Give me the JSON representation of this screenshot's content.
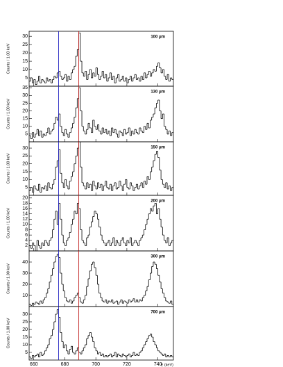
{
  "chart_data": [
    {
      "type": "histogram",
      "label": "100 μm",
      "ylabel": "Counts / 1.00 keV",
      "color": "#000000",
      "bins": [
        657,
        658,
        659,
        660,
        661,
        662,
        663,
        664,
        665,
        666,
        667,
        668,
        669,
        670,
        671,
        672,
        673,
        674,
        675,
        676,
        677,
        678,
        679,
        680,
        681,
        682,
        683,
        684,
        685,
        686,
        687,
        688,
        689,
        690,
        691,
        692,
        693,
        694,
        695,
        696,
        697,
        698,
        699,
        700,
        701,
        702,
        703,
        704,
        705,
        706,
        707,
        708,
        709,
        710,
        711,
        712,
        713,
        714,
        715,
        716,
        717,
        718,
        719,
        720,
        721,
        722,
        723,
        724,
        725,
        726,
        727,
        728,
        729,
        730,
        731,
        732,
        733,
        734,
        735,
        736,
        737,
        738,
        739,
        740,
        741,
        742,
        743,
        744,
        745,
        746,
        747,
        748,
        749,
        750
      ],
      "values": [
        3,
        5,
        2,
        4,
        1,
        3,
        6,
        2,
        4,
        3,
        2,
        5,
        3,
        4,
        2,
        4,
        6,
        5,
        8,
        9,
        6,
        4,
        5,
        7,
        3,
        6,
        4,
        8,
        10,
        12,
        18,
        22,
        32,
        15,
        8,
        6,
        9,
        4,
        7,
        10,
        5,
        8,
        6,
        11,
        7,
        4,
        6,
        9,
        5,
        7,
        3,
        5,
        8,
        4,
        6,
        2,
        5,
        7,
        3,
        4,
        6,
        3,
        5,
        2,
        4,
        6,
        3,
        5,
        7,
        4,
        5,
        3,
        6,
        4,
        8,
        5,
        7,
        9,
        6,
        8,
        10,
        9,
        12,
        14,
        11,
        8,
        10,
        6,
        4,
        7,
        3,
        5,
        4
      ],
      "xlim": [
        657,
        750
      ],
      "xticks": [
        660,
        680,
        700,
        720,
        740
      ],
      "ylim": [
        0,
        33
      ],
      "yticks": [
        5,
        10,
        15,
        20,
        25,
        30
      ],
      "vlines": [
        {
          "x": 676,
          "color": "#2020c0"
        },
        {
          "x": 689,
          "color": "#c02020"
        }
      ]
    },
    {
      "type": "histogram",
      "label": "130 μm",
      "ylabel": "Counts / 1.00 keV",
      "color": "#000000",
      "bins": [
        657,
        658,
        659,
        660,
        661,
        662,
        663,
        664,
        665,
        666,
        667,
        668,
        669,
        670,
        671,
        672,
        673,
        674,
        675,
        676,
        677,
        678,
        679,
        680,
        681,
        682,
        683,
        684,
        685,
        686,
        687,
        688,
        689,
        690,
        691,
        692,
        693,
        694,
        695,
        696,
        697,
        698,
        699,
        700,
        701,
        702,
        703,
        704,
        705,
        706,
        707,
        708,
        709,
        710,
        711,
        712,
        713,
        714,
        715,
        716,
        717,
        718,
        719,
        720,
        721,
        722,
        723,
        724,
        725,
        726,
        727,
        728,
        729,
        730,
        731,
        732,
        733,
        734,
        735,
        736,
        737,
        738,
        739,
        740,
        741,
        742,
        743,
        744,
        745,
        746,
        747,
        748,
        749,
        750
      ],
      "values": [
        4,
        2,
        6,
        3,
        5,
        8,
        4,
        7,
        3,
        5,
        4,
        6,
        9,
        5,
        7,
        8,
        12,
        16,
        14,
        18,
        10,
        6,
        4,
        8,
        5,
        3,
        6,
        9,
        12,
        16,
        22,
        28,
        35,
        20,
        10,
        7,
        5,
        8,
        12,
        9,
        6,
        14,
        10,
        8,
        11,
        7,
        5,
        9,
        6,
        8,
        5,
        7,
        4,
        9,
        6,
        8,
        5,
        3,
        7,
        6,
        4,
        8,
        5,
        6,
        9,
        4,
        7,
        5,
        8,
        6,
        5,
        9,
        7,
        6,
        10,
        8,
        12,
        9,
        14,
        16,
        18,
        22,
        25,
        27,
        20,
        15,
        18,
        10,
        8,
        5,
        7,
        4,
        6
      ],
      "xlim": [
        657,
        750
      ],
      "xticks": [
        660,
        680,
        700,
        720,
        740
      ],
      "ylim": [
        0,
        36
      ],
      "yticks": [
        5,
        10,
        15,
        20,
        25,
        30,
        35
      ],
      "vlines": [
        {
          "x": 676,
          "color": "#2020c0"
        },
        {
          "x": 689,
          "color": "#c02020"
        }
      ]
    },
    {
      "type": "histogram",
      "label": "150 μm",
      "ylabel": "Counts / 1.00 keV",
      "color": "#000000",
      "bins": [
        657,
        658,
        659,
        660,
        661,
        662,
        663,
        664,
        665,
        666,
        667,
        668,
        669,
        670,
        671,
        672,
        673,
        674,
        675,
        676,
        677,
        678,
        679,
        680,
        681,
        682,
        683,
        684,
        685,
        686,
        687,
        688,
        689,
        690,
        691,
        692,
        693,
        694,
        695,
        696,
        697,
        698,
        699,
        700,
        701,
        702,
        703,
        704,
        705,
        706,
        707,
        708,
        709,
        710,
        711,
        712,
        713,
        714,
        715,
        716,
        717,
        718,
        719,
        720,
        721,
        722,
        723,
        724,
        725,
        726,
        727,
        728,
        729,
        730,
        731,
        732,
        733,
        734,
        735,
        736,
        737,
        738,
        739,
        740,
        741,
        742,
        743,
        744,
        745,
        746,
        747,
        748,
        749,
        750
      ],
      "values": [
        3,
        5,
        2,
        6,
        4,
        3,
        7,
        2,
        5,
        4,
        6,
        3,
        8,
        5,
        4,
        7,
        10,
        18,
        22,
        29,
        14,
        8,
        5,
        10,
        6,
        4,
        9,
        12,
        15,
        20,
        25,
        30,
        34,
        18,
        8,
        6,
        4,
        8,
        5,
        7,
        3,
        9,
        6,
        4,
        8,
        5,
        7,
        3,
        6,
        9,
        5,
        4,
        7,
        3,
        6,
        8,
        4,
        5,
        9,
        6,
        3,
        7,
        10,
        5,
        4,
        8,
        6,
        3,
        5,
        7,
        4,
        6,
        8,
        5,
        9,
        7,
        12,
        10,
        15,
        18,
        22,
        26,
        28,
        24,
        16,
        10,
        7,
        5,
        8,
        4,
        6,
        3,
        5
      ],
      "xlim": [
        657,
        750
      ],
      "xticks": [
        660,
        680,
        700,
        720,
        740
      ],
      "ylim": [
        0,
        34
      ],
      "yticks": [
        5,
        10,
        15,
        20,
        25,
        30
      ],
      "vlines": [
        {
          "x": 676,
          "color": "#2020c0"
        },
        {
          "x": 689,
          "color": "#c02020"
        }
      ]
    },
    {
      "type": "histogram",
      "label": "200 μm",
      "ylabel": "Counts / 1.00 keV",
      "color": "#000000",
      "bins": [
        657,
        658,
        659,
        660,
        661,
        662,
        663,
        664,
        665,
        666,
        667,
        668,
        669,
        670,
        671,
        672,
        673,
        674,
        675,
        676,
        677,
        678,
        679,
        680,
        681,
        682,
        683,
        684,
        685,
        686,
        687,
        688,
        689,
        690,
        691,
        692,
        693,
        694,
        695,
        696,
        697,
        698,
        699,
        700,
        701,
        702,
        703,
        704,
        705,
        706,
        707,
        708,
        709,
        710,
        711,
        712,
        713,
        714,
        715,
        716,
        717,
        718,
        719,
        720,
        721,
        722,
        723,
        724,
        725,
        726,
        727,
        728,
        729,
        730,
        731,
        732,
        733,
        734,
        735,
        736,
        737,
        738,
        739,
        740,
        741,
        742,
        743,
        744,
        745,
        746,
        747,
        748,
        749,
        750
      ],
      "values": [
        2,
        1,
        3,
        2,
        0,
        4,
        2,
        1,
        3,
        2,
        4,
        3,
        2,
        4,
        5,
        8,
        12,
        15,
        10,
        18,
        12,
        6,
        3,
        2,
        4,
        5,
        7,
        10,
        12,
        15,
        14,
        18,
        16,
        8,
        4,
        3,
        2,
        5,
        6,
        9,
        11,
        13,
        15,
        14,
        12,
        9,
        6,
        4,
        3,
        2,
        3,
        4,
        2,
        3,
        5,
        2,
        4,
        3,
        2,
        4,
        5,
        3,
        2,
        4,
        3,
        5,
        2,
        3,
        4,
        3,
        2,
        4,
        5,
        6,
        8,
        10,
        12,
        14,
        16,
        15,
        17,
        18,
        14,
        16,
        12,
        9,
        6,
        4,
        3,
        5,
        2,
        3,
        4
      ],
      "xlim": [
        657,
        750
      ],
      "xticks": [
        660,
        680,
        700,
        720,
        740
      ],
      "ylim": [
        0,
        21
      ],
      "yticks": [
        2,
        4,
        6,
        8,
        10,
        12,
        14,
        16,
        18,
        20
      ],
      "vlines": [
        {
          "x": 676,
          "color": "#2020c0"
        },
        {
          "x": 689,
          "color": "#c02020"
        }
      ]
    },
    {
      "type": "histogram",
      "label": "300 μm",
      "ylabel": "Counts / 1.00 keV",
      "color": "#000000",
      "bins": [
        657,
        658,
        659,
        660,
        661,
        662,
        663,
        664,
        665,
        666,
        667,
        668,
        669,
        670,
        671,
        672,
        673,
        674,
        675,
        676,
        677,
        678,
        679,
        680,
        681,
        682,
        683,
        684,
        685,
        686,
        687,
        688,
        689,
        690,
        691,
        692,
        693,
        694,
        695,
        696,
        697,
        698,
        699,
        700,
        701,
        702,
        703,
        704,
        705,
        706,
        707,
        708,
        709,
        710,
        711,
        712,
        713,
        714,
        715,
        716,
        717,
        718,
        719,
        720,
        721,
        722,
        723,
        724,
        725,
        726,
        727,
        728,
        729,
        730,
        731,
        732,
        733,
        734,
        735,
        736,
        737,
        738,
        739,
        740,
        741,
        742,
        743,
        744,
        745,
        746,
        747,
        748,
        749,
        750
      ],
      "values": [
        2,
        1,
        3,
        2,
        4,
        3,
        2,
        5,
        3,
        6,
        8,
        12,
        16,
        22,
        28,
        34,
        40,
        45,
        47,
        44,
        30,
        20,
        14,
        8,
        5,
        4,
        6,
        3,
        5,
        8,
        10,
        12,
        8,
        4,
        3,
        6,
        10,
        18,
        25,
        32,
        38,
        40,
        35,
        28,
        20,
        12,
        8,
        5,
        4,
        6,
        3,
        5,
        4,
        6,
        3,
        4,
        5,
        2,
        4,
        6,
        3,
        5,
        4,
        3,
        6,
        4,
        5,
        7,
        4,
        6,
        4,
        6,
        5,
        8,
        10,
        14,
        18,
        24,
        30,
        36,
        40,
        38,
        34,
        28,
        22,
        16,
        12,
        8,
        5,
        4,
        3,
        5,
        2
      ],
      "xlim": [
        657,
        750
      ],
      "xticks": [
        660,
        680,
        700,
        720,
        740
      ],
      "ylim": [
        0,
        50
      ],
      "yticks": [
        10,
        20,
        30,
        40
      ],
      "vlines": [
        {
          "x": 676,
          "color": "#2020c0"
        },
        {
          "x": 689,
          "color": "#c02020"
        }
      ]
    },
    {
      "type": "histogram",
      "label": "700 μm",
      "ylabel": "Counts / 1.00 keV",
      "xlabel": "E (keV)",
      "color": "#000000",
      "bins": [
        657,
        658,
        659,
        660,
        661,
        662,
        663,
        664,
        665,
        666,
        667,
        668,
        669,
        670,
        671,
        672,
        673,
        674,
        675,
        676,
        677,
        678,
        679,
        680,
        681,
        682,
        683,
        684,
        685,
        686,
        687,
        688,
        689,
        690,
        691,
        692,
        693,
        694,
        695,
        696,
        697,
        698,
        699,
        700,
        701,
        702,
        703,
        704,
        705,
        706,
        707,
        708,
        709,
        710,
        711,
        712,
        713,
        714,
        715,
        716,
        717,
        718,
        719,
        720,
        721,
        722,
        723,
        724,
        725,
        726,
        727,
        728,
        729,
        730,
        731,
        732,
        733,
        734,
        735,
        736,
        737,
        738,
        739,
        740,
        741,
        742,
        743,
        744,
        745,
        746,
        747,
        748,
        749,
        750
      ],
      "values": [
        2,
        1,
        3,
        2,
        3,
        4,
        2,
        5,
        3,
        4,
        6,
        8,
        10,
        14,
        16,
        20,
        25,
        30,
        33,
        28,
        18,
        12,
        8,
        10,
        6,
        4,
        7,
        9,
        5,
        4,
        6,
        8,
        5,
        4,
        6,
        8,
        10,
        14,
        16,
        18,
        15,
        12,
        8,
        6,
        4,
        5,
        3,
        4,
        2,
        3,
        2,
        3,
        4,
        2,
        3,
        5,
        2,
        4,
        3,
        2,
        4,
        3,
        2,
        3,
        4,
        2,
        3,
        5,
        3,
        4,
        3,
        5,
        6,
        8,
        10,
        12,
        14,
        16,
        17,
        15,
        12,
        10,
        8,
        6,
        5,
        4,
        3,
        4,
        2,
        3,
        2,
        3,
        2
      ],
      "xlim": [
        657,
        750
      ],
      "xticks": [
        660,
        680,
        700,
        720,
        740
      ],
      "ylim": [
        0,
        35
      ],
      "yticks": [
        5,
        10,
        15,
        20,
        25,
        30
      ],
      "vlines": [
        {
          "x": 676,
          "color": "#2020c0"
        },
        {
          "x": 689,
          "color": "#c02020"
        }
      ]
    }
  ]
}
